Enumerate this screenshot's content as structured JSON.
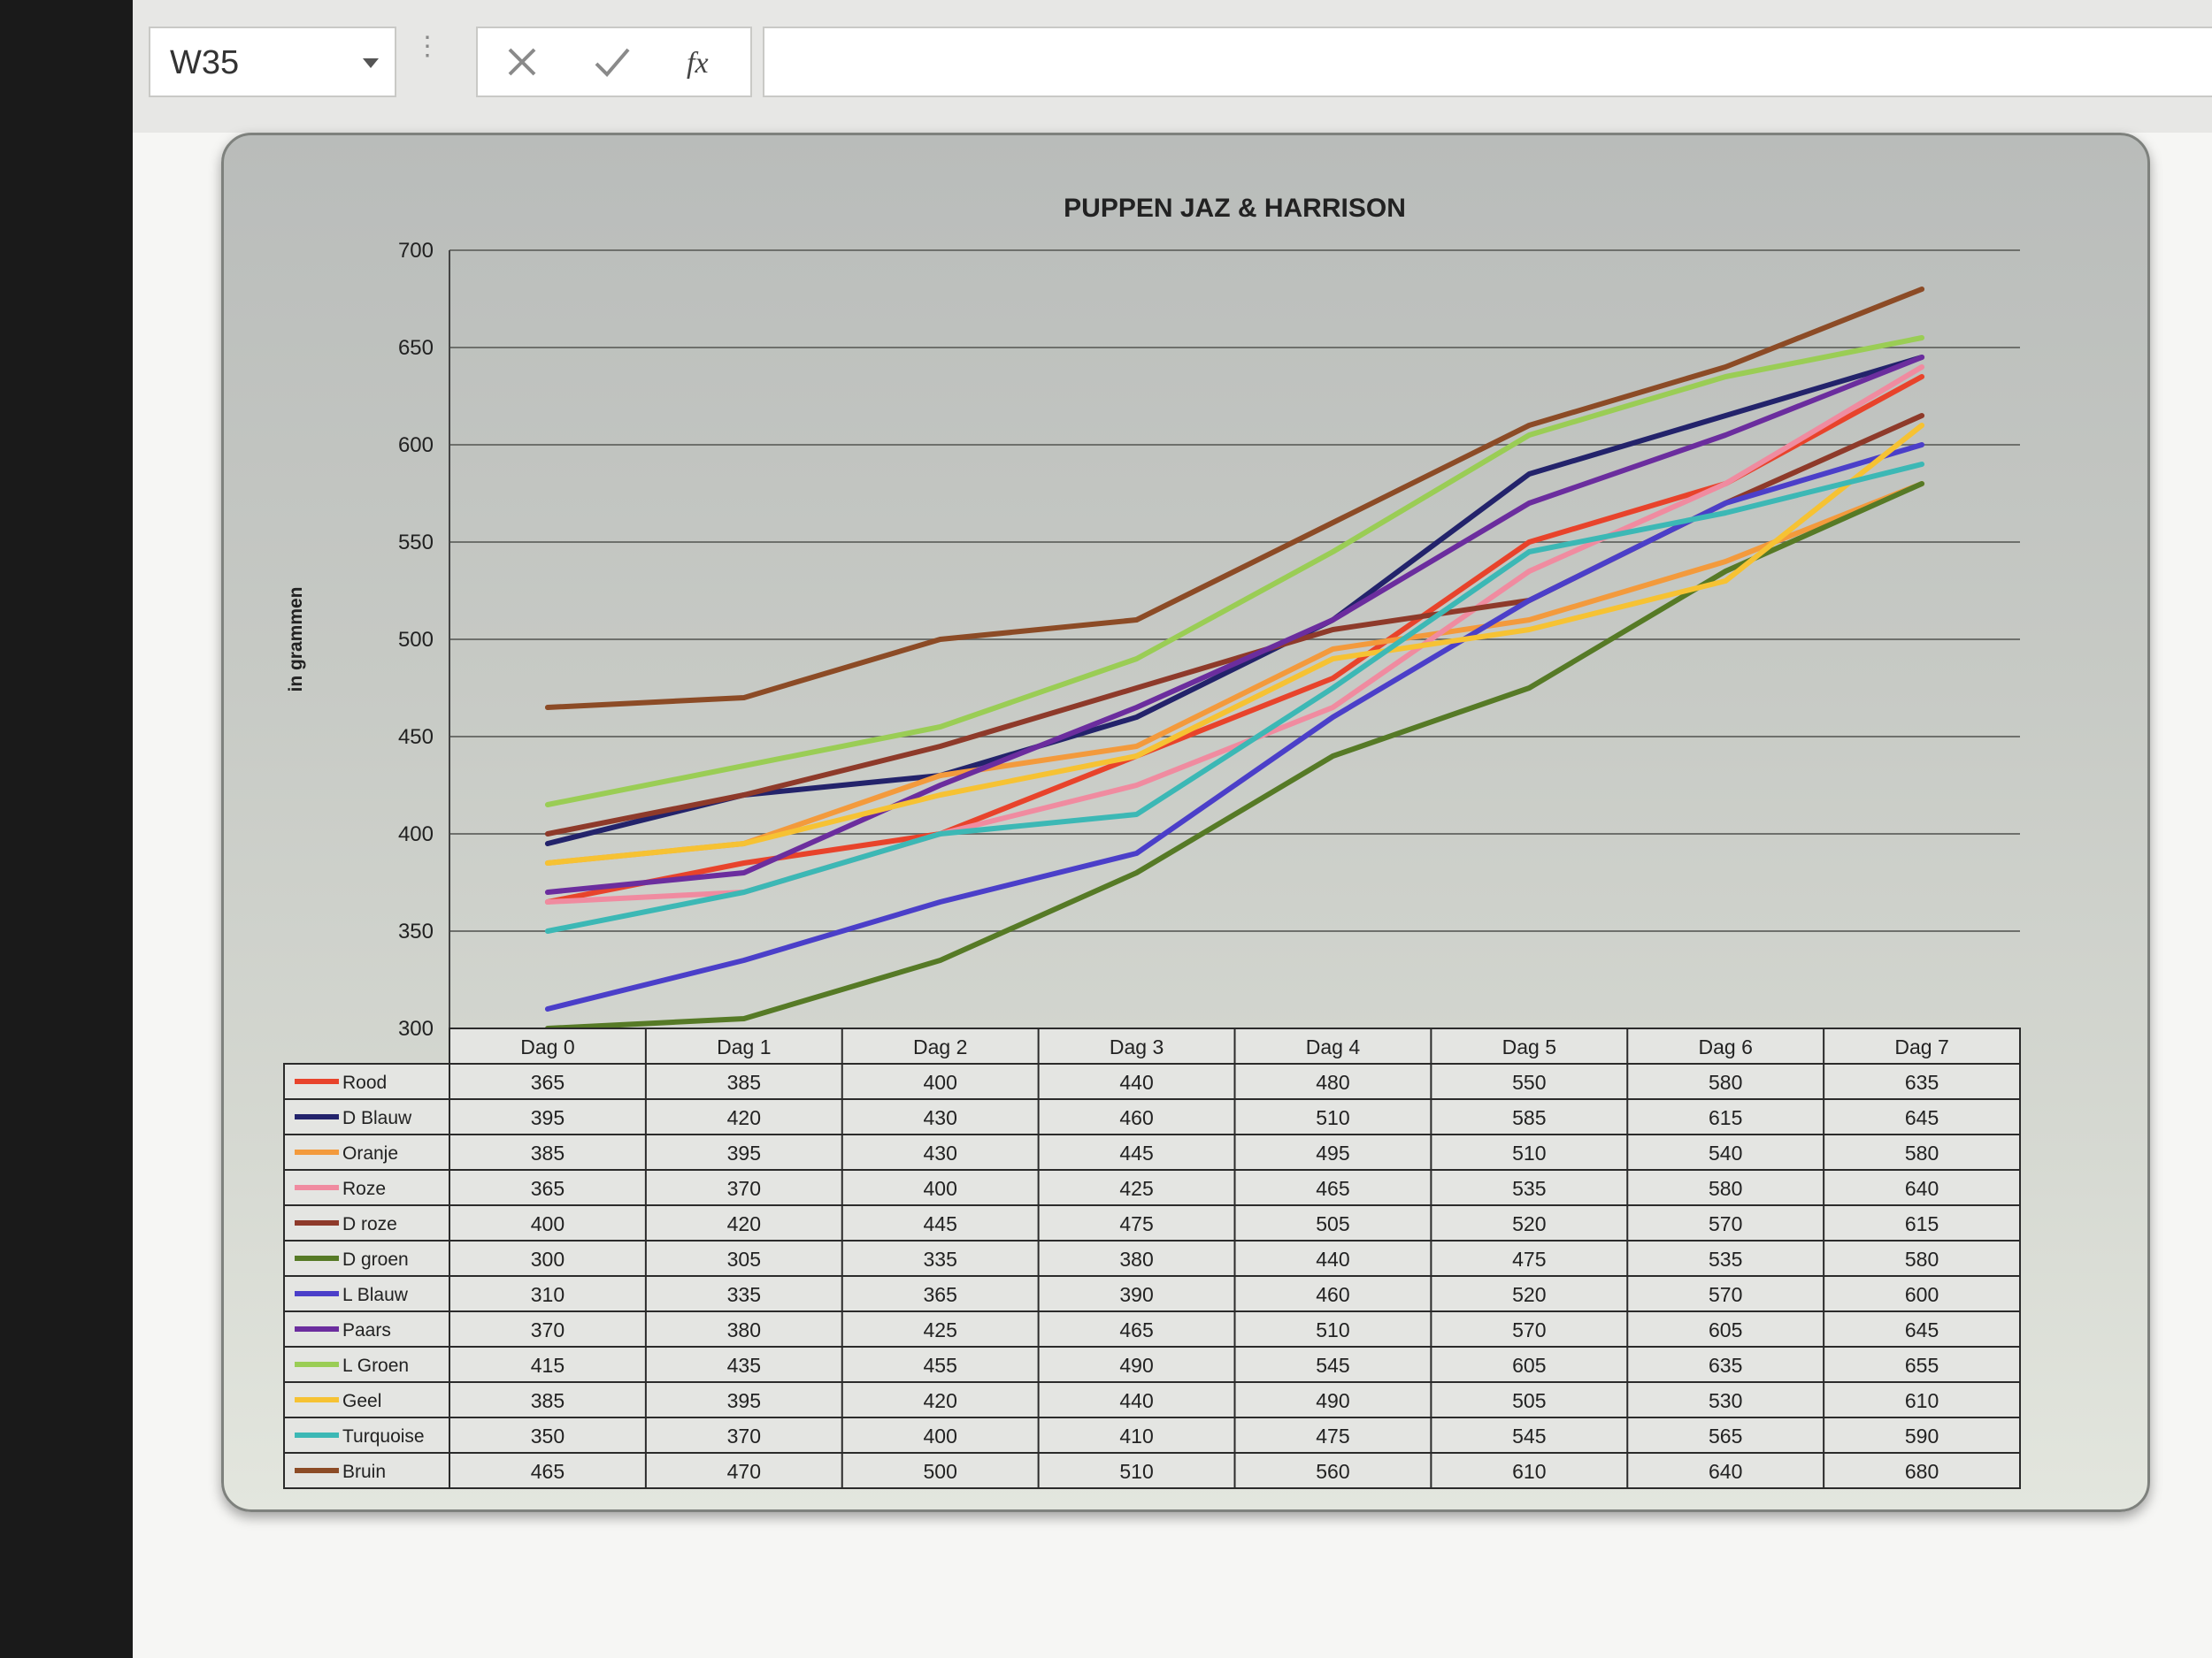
{
  "formula_bar": {
    "name_box": "W35",
    "cancel_icon": "x-icon",
    "enter_icon": "checkmark-icon",
    "function_icon": "fx-icon",
    "function_label": "fx",
    "formula": ""
  },
  "chart_data": {
    "type": "line",
    "title": "PUPPEN JAZ & HARRISON",
    "xlabel": "",
    "ylabel": "in grammen",
    "ylim": [
      300,
      700
    ],
    "yticks": [
      300,
      350,
      400,
      450,
      500,
      550,
      600,
      650,
      700
    ],
    "grid": true,
    "legend": "data table below plot",
    "categories": [
      "Dag 0",
      "Dag 1",
      "Dag 2",
      "Dag 3",
      "Dag 4",
      "Dag 5",
      "Dag 6",
      "Dag 7"
    ],
    "series": [
      {
        "name": "Rood",
        "color": "#e8432b",
        "values": [
          365,
          385,
          400,
          440,
          480,
          550,
          580,
          635
        ]
      },
      {
        "name": "D Blauw",
        "color": "#23236b",
        "values": [
          395,
          420,
          430,
          460,
          510,
          585,
          615,
          645
        ]
      },
      {
        "name": "Oranje",
        "color": "#f39a3c",
        "values": [
          385,
          395,
          430,
          445,
          495,
          510,
          540,
          580
        ]
      },
      {
        "name": "Roze",
        "color": "#f08ba0",
        "values": [
          365,
          370,
          400,
          425,
          465,
          535,
          580,
          640
        ]
      },
      {
        "name": "D roze",
        "color": "#8e3a2a",
        "values": [
          400,
          420,
          445,
          475,
          505,
          520,
          570,
          615
        ]
      },
      {
        "name": "D groen",
        "color": "#567a26",
        "values": [
          300,
          305,
          335,
          380,
          440,
          475,
          535,
          580
        ]
      },
      {
        "name": "L Blauw",
        "color": "#4b3fc9",
        "values": [
          310,
          335,
          365,
          390,
          460,
          520,
          570,
          600
        ]
      },
      {
        "name": "Paars",
        "color": "#6b2d9e",
        "values": [
          370,
          380,
          425,
          465,
          510,
          570,
          605,
          645
        ]
      },
      {
        "name": "L Groen",
        "color": "#9acd55",
        "values": [
          415,
          435,
          455,
          490,
          545,
          605,
          635,
          655
        ]
      },
      {
        "name": "Geel",
        "color": "#f6c233",
        "values": [
          385,
          395,
          420,
          440,
          490,
          505,
          530,
          610
        ]
      },
      {
        "name": "Turquoise",
        "color": "#3cb8b5",
        "values": [
          350,
          370,
          400,
          410,
          475,
          545,
          565,
          590
        ]
      },
      {
        "name": "Bruin",
        "color": "#8c4b26",
        "values": [
          465,
          470,
          500,
          510,
          560,
          610,
          640,
          680
        ]
      }
    ]
  }
}
